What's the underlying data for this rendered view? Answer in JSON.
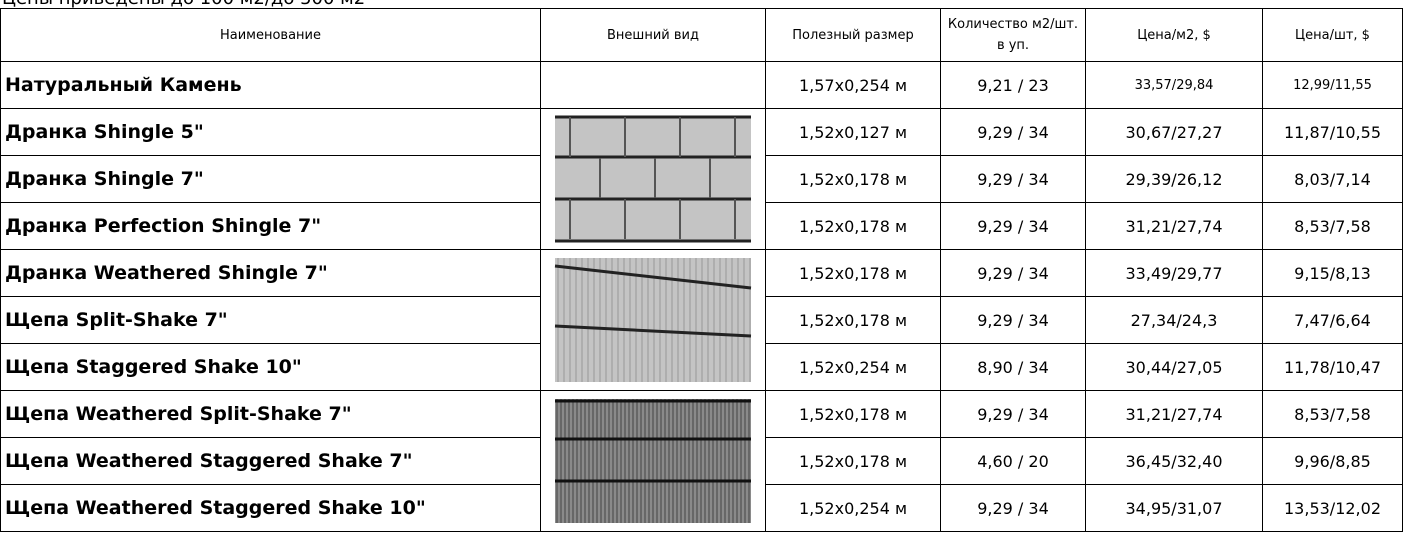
{
  "header": {
    "note": "Цены приведены до 100 м2/до 500 м2"
  },
  "table": {
    "columns": [
      "Наименование",
      "Внешний вид",
      "Полезный размер",
      "Количество м2/шт. в уп.",
      "Цена/м2, $",
      "Цена/шт, $"
    ],
    "rows": [
      [
        "Натуральный Камень",
        "1,57x0,254 м",
        "9,21 / 23",
        "33,57/29,84",
        "12,99/11,55"
      ],
      [
        "Дранка Shingle 5\"",
        "1,52x0,127 м",
        "9,29 / 34",
        "30,67/27,27",
        "11,87/10,55"
      ],
      [
        "Дранка Shingle 7\"",
        "1,52x0,178 м",
        "9,29 / 34",
        "29,39/26,12",
        "8,03/7,14"
      ],
      [
        "Дранка Perfection Shingle 7\"",
        "1,52x0,178 м",
        "9,29 / 34",
        "31,21/27,74",
        "8,53/7,58"
      ],
      [
        "Дранка Weathered Shingle 7\"",
        "1,52x0,178 м",
        "9,29 / 34",
        "33,49/29,77",
        "9,15/8,13"
      ],
      [
        "Щепа Split-Shake 7\"",
        "1,52x0,178 м",
        "9,29 / 34",
        "27,34/24,3",
        "7,47/6,64"
      ],
      [
        "Щепа Staggered Shake 10\"",
        "1,52x0,254 м",
        "8,90 / 34",
        "30,44/27,05",
        "11,78/10,47"
      ],
      [
        "Щепа Weathered Split-Shake 7\"",
        "1,52x0,178 м",
        "9,29 / 34",
        "31,21/27,74",
        "8,53/7,58"
      ],
      [
        "Щепа Weathered Staggered Shake 7\"",
        "1,52x0,178 м",
        "4,60 / 20",
        "36,45/32,40",
        "9,96/8,85"
      ],
      [
        "Щепа Weathered Staggered Shake 10\"",
        "1,52x0,254 м",
        "9,29 / 34",
        "34,95/31,07",
        "13,53/12,02"
      ]
    ]
  }
}
